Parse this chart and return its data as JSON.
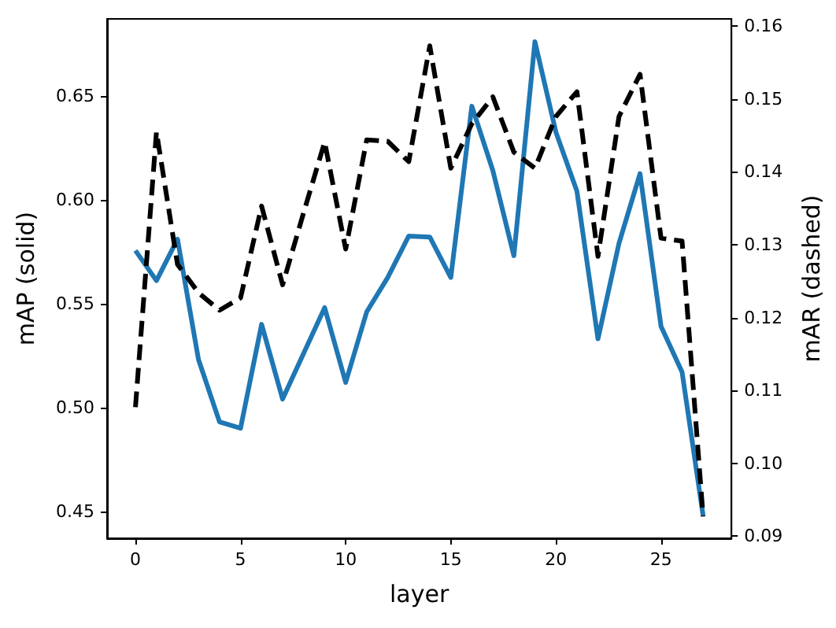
{
  "chart_data": {
    "type": "line",
    "xlabel": "layer",
    "ylabel": "mAP (solid)",
    "y2label": "mAR (dashed)",
    "xlim": [
      -1.35,
      28.35
    ],
    "xticks": [
      0,
      5,
      10,
      15,
      20,
      25
    ],
    "ylim": [
      0.437,
      0.687
    ],
    "yticks": [
      0.45,
      {
        "value": 0.5,
        "label": "0.50"
      },
      0.55,
      {
        "value": 0.6,
        "label": "0.60"
      },
      0.65
    ],
    "y2lim": [
      0.0897,
      0.161
    ],
    "y2ticks": [
      0.09,
      {
        "value": 0.1,
        "label": "0.10"
      },
      0.11,
      0.12,
      0.13,
      0.14,
      0.15,
      0.16
    ],
    "grid": false,
    "marker": "none",
    "series": [
      {
        "color": "#1f77b4",
        "line_style": "solid",
        "x": [
          0,
          1,
          2,
          3,
          4,
          5,
          6,
          7,
          8,
          9,
          10,
          11,
          12,
          13,
          14,
          15,
          16,
          17,
          18,
          19,
          20,
          21,
          22,
          23,
          24,
          25,
          26,
          27
        ],
        "values": [
          0.5755,
          0.561,
          0.581,
          0.523,
          0.493,
          0.49,
          0.54,
          0.504,
          0.526,
          0.548,
          0.512,
          0.546,
          0.5625,
          0.5825,
          0.582,
          0.5625,
          0.645,
          0.614,
          0.573,
          0.676,
          0.6325,
          0.604,
          0.533,
          0.579,
          0.6125,
          0.539,
          0.517,
          0.448
        ]
      },
      {
        "color": "#000000",
        "line_style": "dashed",
        "axis": "y2",
        "x": [
          0,
          1,
          2,
          3,
          4,
          5,
          6,
          7,
          8,
          9,
          10,
          11,
          12,
          13,
          14,
          15,
          16,
          17,
          18,
          19,
          20,
          21,
          22,
          23,
          24,
          25,
          26,
          27
        ],
        "values": [
          0.1077,
          0.1455,
          0.1273,
          0.1234,
          0.121,
          0.1227,
          0.1353,
          0.1245,
          0.1344,
          0.1441,
          0.1294,
          0.1444,
          0.1442,
          0.1414,
          0.1573,
          0.1405,
          0.1466,
          0.1503,
          0.1427,
          0.1405,
          0.1476,
          0.151,
          0.1284,
          0.1476,
          0.1534,
          0.1309,
          0.1305,
          0.0927
        ]
      }
    ]
  }
}
